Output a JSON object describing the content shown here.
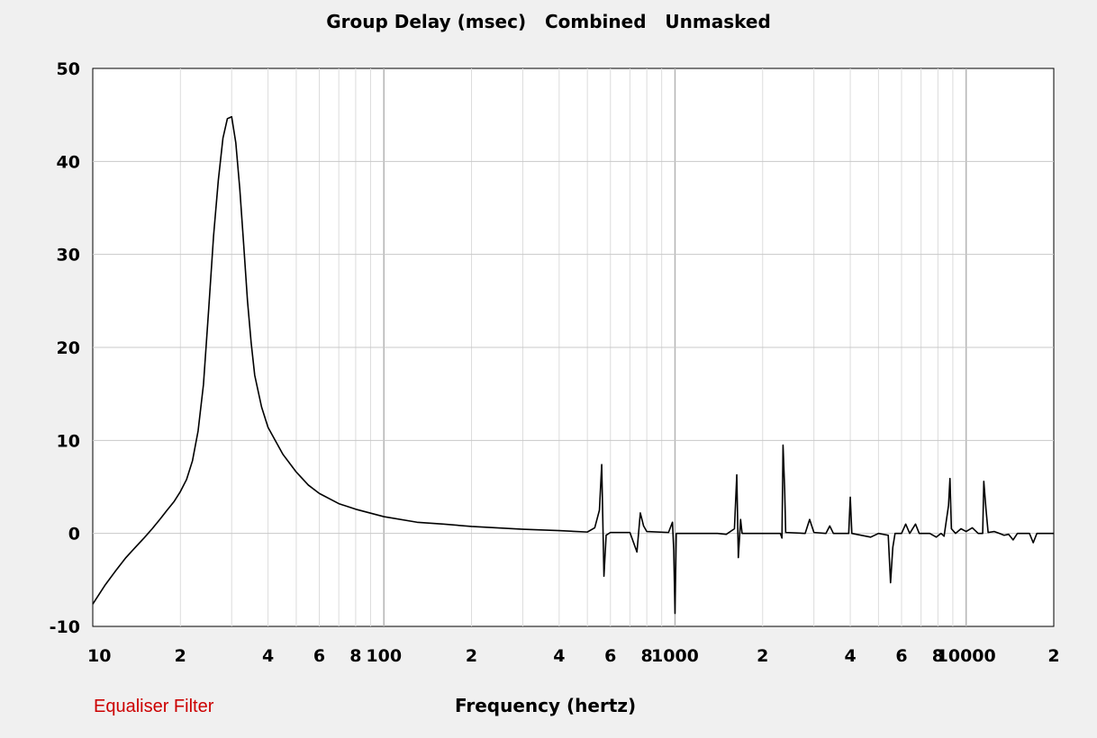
{
  "chart_data": {
    "type": "line",
    "title": "Group Delay (msec)   Combined   Unmasked",
    "xlabel": "Frequency (hertz)",
    "ylabel": "",
    "x_scale": "log",
    "xlim": [
      10,
      20000
    ],
    "ylim": [
      -10,
      50
    ],
    "grid": true,
    "y_ticks": [
      -10,
      0,
      10,
      20,
      30,
      40,
      50
    ],
    "x_ticks": [
      {
        "value": 10,
        "label": "10"
      },
      {
        "value": 20,
        "label": "2"
      },
      {
        "value": 40,
        "label": "4"
      },
      {
        "value": 60,
        "label": "6"
      },
      {
        "value": 80,
        "label": "8"
      },
      {
        "value": 100,
        "label": "100"
      },
      {
        "value": 200,
        "label": "2"
      },
      {
        "value": 400,
        "label": "4"
      },
      {
        "value": 600,
        "label": "6"
      },
      {
        "value": 800,
        "label": "8"
      },
      {
        "value": 1000,
        "label": "1000"
      },
      {
        "value": 2000,
        "label": "2"
      },
      {
        "value": 4000,
        "label": "4"
      },
      {
        "value": 6000,
        "label": "6"
      },
      {
        "value": 8000,
        "label": "8"
      },
      {
        "value": 10000,
        "label": "10000"
      },
      {
        "value": 20000,
        "label": "2"
      }
    ],
    "series": [
      {
        "color": "#000000",
        "points": [
          [
            10,
            -7.6
          ],
          [
            11,
            -5.6
          ],
          [
            12,
            -4.0
          ],
          [
            13,
            -2.6
          ],
          [
            14,
            -1.5
          ],
          [
            15,
            -0.5
          ],
          [
            16,
            0.5
          ],
          [
            17,
            1.5
          ],
          [
            18,
            2.5
          ],
          [
            19,
            3.4
          ],
          [
            20,
            4.5
          ],
          [
            21,
            5.8
          ],
          [
            22,
            7.8
          ],
          [
            23,
            11
          ],
          [
            24,
            16
          ],
          [
            25,
            24
          ],
          [
            26,
            32
          ],
          [
            27,
            38
          ],
          [
            28,
            42.5
          ],
          [
            29,
            44.6
          ],
          [
            30,
            44.8
          ],
          [
            31,
            42
          ],
          [
            32,
            37
          ],
          [
            33,
            31
          ],
          [
            34,
            25
          ],
          [
            35,
            20.5
          ],
          [
            36,
            17
          ],
          [
            38,
            13.6
          ],
          [
            40,
            11.4
          ],
          [
            45,
            8.5
          ],
          [
            50,
            6.6
          ],
          [
            55,
            5.2
          ],
          [
            60,
            4.3
          ],
          [
            70,
            3.2
          ],
          [
            80,
            2.6
          ],
          [
            100,
            1.8
          ],
          [
            130,
            1.2
          ],
          [
            160,
            1.0
          ],
          [
            200,
            0.75
          ],
          [
            300,
            0.45
          ],
          [
            400,
            0.3
          ],
          [
            500,
            0.15
          ],
          [
            530,
            0.6
          ],
          [
            550,
            2.5
          ],
          [
            560,
            7.4
          ],
          [
            570,
            -4.6
          ],
          [
            580,
            -0.2
          ],
          [
            600,
            0.1
          ],
          [
            700,
            0.1
          ],
          [
            740,
            -2.0
          ],
          [
            760,
            2.2
          ],
          [
            780,
            0.8
          ],
          [
            800,
            0.2
          ],
          [
            950,
            0.1
          ],
          [
            980,
            1.2
          ],
          [
            990,
            -1.8
          ],
          [
            1000,
            -8.6
          ],
          [
            1010,
            0
          ],
          [
            1400,
            0
          ],
          [
            1500,
            -0.1
          ],
          [
            1600,
            0.5
          ],
          [
            1630,
            6.3
          ],
          [
            1650,
            -2.6
          ],
          [
            1680,
            1.5
          ],
          [
            1700,
            0
          ],
          [
            2300,
            0
          ],
          [
            2330,
            -0.5
          ],
          [
            2350,
            9.5
          ],
          [
            2380,
            4.8
          ],
          [
            2400,
            0.1
          ],
          [
            2800,
            0
          ],
          [
            2900,
            1.5
          ],
          [
            3000,
            0.1
          ],
          [
            3300,
            0
          ],
          [
            3400,
            0.8
          ],
          [
            3500,
            0
          ],
          [
            3950,
            0
          ],
          [
            4000,
            3.9
          ],
          [
            4050,
            0
          ],
          [
            4700,
            -0.4
          ],
          [
            5000,
            0
          ],
          [
            5400,
            -0.2
          ],
          [
            5500,
            -5.3
          ],
          [
            5600,
            -1.5
          ],
          [
            5700,
            0
          ],
          [
            6000,
            0
          ],
          [
            6200,
            1.0
          ],
          [
            6400,
            0
          ],
          [
            6700,
            1.0
          ],
          [
            6900,
            0
          ],
          [
            7500,
            0
          ],
          [
            7900,
            -0.4
          ],
          [
            8200,
            0
          ],
          [
            8400,
            -0.3
          ],
          [
            8700,
            3.0
          ],
          [
            8800,
            5.9
          ],
          [
            8900,
            0.5
          ],
          [
            9200,
            0
          ],
          [
            9600,
            0.5
          ],
          [
            10000,
            0.2
          ],
          [
            10500,
            0.6
          ],
          [
            11000,
            0
          ],
          [
            11400,
            0
          ],
          [
            11500,
            5.6
          ],
          [
            11700,
            2.6
          ],
          [
            11900,
            0.1
          ],
          [
            12500,
            0.2
          ],
          [
            13000,
            0
          ],
          [
            13500,
            -0.2
          ],
          [
            14000,
            -0.1
          ],
          [
            14500,
            -0.7
          ],
          [
            15000,
            0
          ],
          [
            16000,
            0
          ],
          [
            16500,
            0
          ],
          [
            17000,
            -1.0
          ],
          [
            17500,
            0
          ],
          [
            18500,
            0
          ],
          [
            20000,
            0
          ]
        ]
      }
    ]
  },
  "footnote": "Equaliser Filter"
}
